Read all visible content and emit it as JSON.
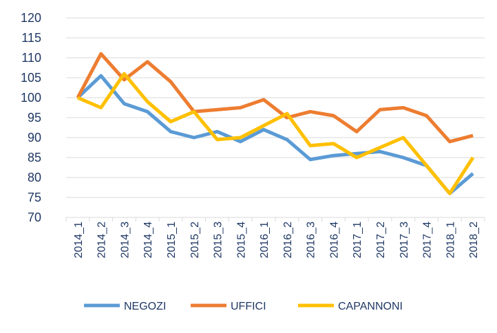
{
  "chart_data": {
    "type": "line",
    "title": "",
    "xlabel": "",
    "ylabel": "",
    "ylim": [
      70,
      120
    ],
    "ytick_step": 5,
    "grid": true,
    "legend_position": "bottom",
    "categories": [
      "2014_1",
      "2014_2",
      "2014_3",
      "2014_4",
      "2015_1",
      "2015_2",
      "2015_3",
      "2015_4",
      "2016_1",
      "2016_2",
      "2016_3",
      "2016_4",
      "2017_1",
      "2017_2",
      "2017_3",
      "2017_4",
      "2018_1",
      "2018_2"
    ],
    "series": [
      {
        "name": "NEGOZI",
        "color": "#5b9bd5",
        "values": [
          100,
          105.5,
          98.5,
          96.5,
          91.5,
          90,
          91.5,
          89,
          92,
          89.5,
          84.5,
          85.5,
          86,
          86.5,
          85,
          83,
          76,
          81
        ]
      },
      {
        "name": "UFFICI",
        "color": "#ed7d31",
        "values": [
          100,
          111,
          104.5,
          109,
          104,
          96.5,
          97,
          97.5,
          99.5,
          95,
          96.5,
          95.5,
          91.5,
          97,
          97.5,
          95.5,
          89,
          90.5
        ]
      },
      {
        "name": "CAPANNONI",
        "color": "#ffc000",
        "values": [
          100,
          97.5,
          106,
          99,
          94,
          96.5,
          89.5,
          90,
          93,
          96,
          88,
          88.5,
          85,
          87.5,
          90,
          83,
          76,
          85
        ]
      }
    ]
  }
}
